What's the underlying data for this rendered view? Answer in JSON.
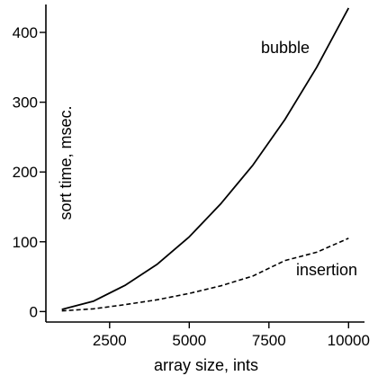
{
  "chart_data": {
    "type": "line",
    "title": "",
    "xlabel": "array size, ints",
    "ylabel": "sort time, msec.",
    "xlim": [
      500,
      10500
    ],
    "ylim": [
      -15,
      440
    ],
    "x_ticks": [
      2500,
      5000,
      7500,
      10000
    ],
    "y_ticks": [
      0,
      100,
      200,
      300,
      400
    ],
    "grid": false,
    "legend": "none",
    "series": [
      {
        "name": "bubble",
        "style": "solid",
        "color": "#000000",
        "x": [
          1000,
          2000,
          3000,
          4000,
          5000,
          6000,
          7000,
          8000,
          9000,
          10000
        ],
        "y": [
          3,
          15,
          38,
          68,
          107,
          155,
          210,
          275,
          350,
          435
        ]
      },
      {
        "name": "insertion",
        "style": "dashed",
        "color": "#000000",
        "x": [
          1000,
          2000,
          3000,
          4000,
          5000,
          6000,
          7000,
          8000,
          9000,
          10000
        ],
        "y": [
          1,
          4,
          10,
          17,
          26,
          37,
          51,
          73,
          85,
          105
        ]
      }
    ]
  }
}
